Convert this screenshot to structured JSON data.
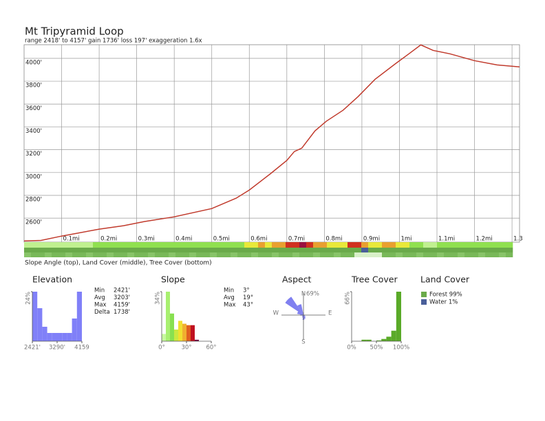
{
  "chart_data": [
    {
      "type": "line",
      "title": "Mt Tripyramid Loop",
      "subtitle": "range 2418' to 4157'  gain 1736'  loss 197'  exaggeration 1.6x",
      "caption": "Slope Angle (top), Land Cover (middle), Tree Cover (bottom)",
      "x": [
        0,
        0.045,
        0.1,
        0.2,
        0.265,
        0.32,
        0.4,
        0.5,
        0.565,
        0.6,
        0.655,
        0.7,
        0.72,
        0.74,
        0.775,
        0.805,
        0.85,
        0.89,
        0.935,
        0.99,
        1.025,
        1.057,
        1.09,
        1.135,
        1.2,
        1.26,
        1.32
      ],
      "values": [
        2400,
        2405,
        2443,
        2504,
        2534,
        2570,
        2612,
        2684,
        2775,
        2847,
        2986,
        3106,
        3184,
        3214,
        3365,
        3449,
        3546,
        3666,
        3817,
        3955,
        4040,
        4118,
        4070,
        4040,
        3980,
        3943,
        3925
      ],
      "color": "#c0392b",
      "xlim": [
        0,
        1.32
      ],
      "ylim": [
        2390,
        4120
      ],
      "xticks": [
        {
          "value": 0.1,
          "label": "0.1mi"
        },
        {
          "value": 0.2,
          "label": "0.2mi"
        },
        {
          "value": 0.3,
          "label": "0.3mi"
        },
        {
          "value": 0.4,
          "label": "0.4mi"
        },
        {
          "value": 0.5,
          "label": "0.5mi"
        },
        {
          "value": 0.6,
          "label": "0.6mi"
        },
        {
          "value": 0.7,
          "label": "0.7mi"
        },
        {
          "value": 0.8,
          "label": "0.8mi"
        },
        {
          "value": 0.9,
          "label": "0.9mi"
        },
        {
          "value": 1,
          "label": "1mi"
        },
        {
          "value": 1.1,
          "label": "1.1mi"
        },
        {
          "value": 1.2,
          "label": "1.2mi"
        },
        {
          "value": 1.3,
          "label": "1.3"
        }
      ],
      "yticks": [
        {
          "value": 2600,
          "label": "2600'"
        },
        {
          "value": 2800,
          "label": "2800'"
        },
        {
          "value": 3000,
          "label": "3000'"
        },
        {
          "value": 3200,
          "label": "3200'"
        },
        {
          "value": 3400,
          "label": "3400'"
        },
        {
          "value": 3600,
          "label": "3600'"
        },
        {
          "value": 3800,
          "label": "3800'"
        },
        {
          "value": 4000,
          "label": "4000'"
        }
      ],
      "grid": true
    },
    {
      "type": "histogram",
      "title": "Elevation",
      "bins": [
        2421,
        2594.8,
        2768.6,
        2942.4,
        3116.2,
        3290,
        3463.8,
        3637.6,
        3811.4,
        3985.2,
        4159
      ],
      "values": [
        24,
        16,
        7,
        4,
        4,
        4,
        4,
        4,
        11,
        24
      ],
      "color": "#8080f8",
      "xlim": [
        2421,
        4159
      ],
      "ylim": [
        0,
        24
      ],
      "xticks": [
        {
          "value": 2421,
          "label": "2421'"
        },
        {
          "value": 3290,
          "label": "3290'"
        },
        {
          "value": 4159,
          "label": "4159"
        }
      ],
      "yticks": [
        {
          "value": 24,
          "label": "24%"
        }
      ],
      "stats": [
        [
          "Min",
          "2421'"
        ],
        [
          "Avg",
          "3203'"
        ],
        [
          "Max",
          "4159'"
        ],
        [
          "Delta",
          "1738'"
        ]
      ]
    },
    {
      "type": "histogram",
      "title": "Slope",
      "bins": [
        0,
        5,
        10,
        15,
        20,
        25,
        30,
        35,
        40,
        45,
        50,
        55,
        60
      ],
      "values": [
        5,
        34,
        19,
        8,
        14,
        12,
        11,
        11,
        1,
        0,
        0,
        0
      ],
      "colors": [
        "#c8f8a0",
        "#a8f070",
        "#88e050",
        "#c8e840",
        "#f0e030",
        "#f0b030",
        "#e06020",
        "#c01020",
        "#700040",
        "#700040",
        "#700040",
        "#700040"
      ],
      "xlim": [
        0,
        60
      ],
      "ylim": [
        0,
        34
      ],
      "xticks": [
        {
          "value": 0,
          "label": "0°"
        },
        {
          "value": 30,
          "label": "30°"
        },
        {
          "value": 60,
          "label": "60°"
        }
      ],
      "yticks": [
        {
          "value": 34,
          "label": "34%"
        }
      ],
      "stats": [
        [
          "Min",
          "3°"
        ],
        [
          "Avg",
          "19°"
        ],
        [
          "Max",
          "43°"
        ]
      ]
    },
    {
      "type": "rose",
      "title": "Aspect",
      "angles": [
        0,
        22.5,
        45,
        67.5,
        90,
        112.5,
        135,
        157.5,
        180,
        202.5,
        225,
        247.5,
        270,
        292.5,
        315,
        337.5
      ],
      "values": [
        8,
        3,
        2,
        2,
        3,
        5,
        8,
        12,
        15,
        8,
        5,
        5,
        10,
        20,
        69,
        35
      ],
      "color": "#8080f0",
      "rlim": [
        0,
        69
      ],
      "rticks": [
        {
          "value": 69,
          "label": "69%"
        }
      ],
      "compass": [
        "N",
        "E",
        "S",
        "W"
      ]
    },
    {
      "type": "histogram",
      "title": "Tree Cover",
      "bins": [
        0,
        10,
        20,
        30,
        40,
        50,
        60,
        70,
        80,
        90,
        100
      ],
      "values": [
        0,
        0,
        2,
        2,
        0,
        1,
        3,
        6,
        14,
        66
      ],
      "color": "#5aaa28",
      "xlim": [
        0,
        100
      ],
      "ylim": [
        0,
        66
      ],
      "xticks": [
        {
          "value": 0,
          "label": "0%"
        },
        {
          "value": 50,
          "label": "50%"
        },
        {
          "value": 100,
          "label": "100%"
        }
      ],
      "yticks": [
        {
          "value": 66,
          "label": "66%"
        }
      ]
    },
    {
      "type": "legend",
      "title": "Land Cover",
      "series": [
        {
          "name": "Forest 99%",
          "color": "#6aaa4a"
        },
        {
          "name": "Water 1%",
          "color": "#4a5f9a"
        }
      ]
    }
  ]
}
